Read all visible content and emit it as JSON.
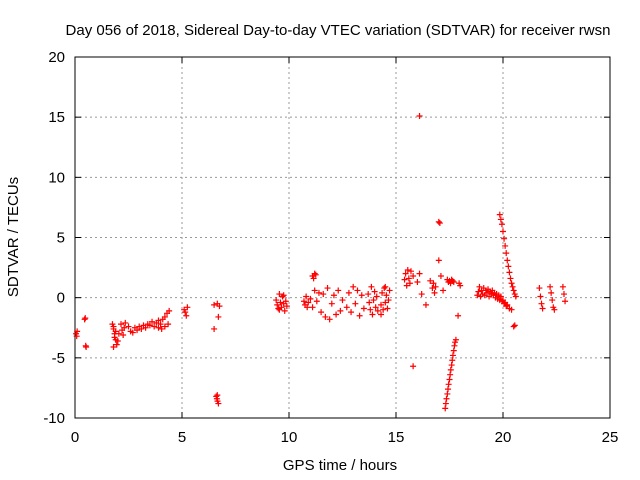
{
  "chart_data": {
    "type": "scatter",
    "title": "Day 056 of 2018, Sidereal Day-to-day VTEC variation (SDTVAR) for receiver rwsn",
    "xlabel": "GPS time / hours",
    "ylabel": "SDTVAR / TECUs",
    "xlim": [
      0,
      25
    ],
    "ylim": [
      -10,
      20
    ],
    "xticks": [
      0,
      5,
      10,
      15,
      20,
      25
    ],
    "yticks": [
      -10,
      -5,
      0,
      5,
      10,
      15,
      20
    ],
    "grid": true,
    "marker": "+",
    "color": "#ff0000",
    "series": [
      {
        "name": "SDTVAR",
        "points": [
          [
            0.05,
            -3.0
          ],
          [
            0.08,
            -3.2
          ],
          [
            0.1,
            -2.8
          ],
          [
            0.45,
            -1.8
          ],
          [
            0.48,
            -1.7
          ],
          [
            0.5,
            -4.0
          ],
          [
            0.52,
            -4.1
          ],
          [
            1.75,
            -2.2
          ],
          [
            1.8,
            -2.6
          ],
          [
            1.85,
            -3.0
          ],
          [
            1.9,
            -3.5
          ],
          [
            1.95,
            -3.9
          ],
          [
            1.8,
            -4.1
          ],
          [
            1.85,
            -3.3
          ],
          [
            1.9,
            -2.8
          ],
          [
            2.0,
            -3.6
          ],
          [
            2.05,
            -3.0
          ],
          [
            1.8,
            -2.4
          ],
          [
            2.15,
            -2.2
          ],
          [
            2.2,
            -2.7
          ],
          [
            2.25,
            -3.1
          ],
          [
            2.3,
            -2.5
          ],
          [
            2.35,
            -2.1
          ],
          [
            2.5,
            -2.4
          ],
          [
            2.6,
            -2.8
          ],
          [
            2.7,
            -2.9
          ],
          [
            2.8,
            -2.5
          ],
          [
            2.9,
            -2.7
          ],
          [
            3.0,
            -2.4
          ],
          [
            3.1,
            -2.6
          ],
          [
            3.2,
            -2.3
          ],
          [
            3.3,
            -2.5
          ],
          [
            3.4,
            -2.2
          ],
          [
            3.5,
            -2.3
          ],
          [
            3.6,
            -2.0
          ],
          [
            3.7,
            -2.4
          ],
          [
            3.8,
            -2.1
          ],
          [
            3.9,
            -1.9
          ],
          [
            4.0,
            -2.2
          ],
          [
            4.1,
            -1.8
          ],
          [
            4.2,
            -1.6
          ],
          [
            4.3,
            -1.3
          ],
          [
            4.4,
            -1.1
          ],
          [
            4.35,
            -2.2
          ],
          [
            4.2,
            -2.4
          ],
          [
            4.05,
            -2.6
          ],
          [
            3.9,
            -2.5
          ],
          [
            5.1,
            -1.0
          ],
          [
            5.15,
            -1.2
          ],
          [
            5.2,
            -1.5
          ],
          [
            5.25,
            -0.8
          ],
          [
            6.5,
            -0.6
          ],
          [
            6.5,
            -2.6
          ],
          [
            6.65,
            -0.5
          ],
          [
            6.7,
            -1.6
          ],
          [
            6.75,
            -0.7
          ],
          [
            6.6,
            -8.2
          ],
          [
            6.63,
            -8.4
          ],
          [
            6.66,
            -8.6
          ],
          [
            6.7,
            -8.8
          ],
          [
            6.65,
            -8.1
          ],
          [
            9.4,
            -0.2
          ],
          [
            9.45,
            -0.6
          ],
          [
            9.5,
            -0.9
          ],
          [
            9.55,
            0.3
          ],
          [
            9.6,
            -0.4
          ],
          [
            9.65,
            -0.8
          ],
          [
            9.7,
            0.1
          ],
          [
            9.75,
            -0.5
          ],
          [
            9.8,
            -1.1
          ],
          [
            9.85,
            -0.3
          ],
          [
            9.9,
            -0.7
          ],
          [
            9.55,
            -1.0
          ],
          [
            9.75,
            0.2
          ],
          [
            10.7,
            -0.3
          ],
          [
            10.75,
            -0.6
          ],
          [
            10.8,
            0.1
          ],
          [
            10.85,
            -0.8
          ],
          [
            10.9,
            -0.4
          ],
          [
            11.1,
            1.8
          ],
          [
            11.15,
            1.6
          ],
          [
            11.2,
            2.0
          ],
          [
            11.25,
            1.9
          ],
          [
            11.0,
            -0.1
          ],
          [
            11.1,
            -0.8
          ],
          [
            11.2,
            0.6
          ],
          [
            11.3,
            -0.3
          ],
          [
            11.4,
            0.4
          ],
          [
            11.5,
            -1.2
          ],
          [
            11.6,
            0.3
          ],
          [
            11.7,
            -1.6
          ],
          [
            11.8,
            0.8
          ],
          [
            11.9,
            -1.8
          ],
          [
            12.0,
            -0.5
          ],
          [
            12.1,
            0.2
          ],
          [
            12.2,
            -1.4
          ],
          [
            12.3,
            0.6
          ],
          [
            12.4,
            -1.1
          ],
          [
            12.5,
            -0.2
          ],
          [
            12.7,
            -0.8
          ],
          [
            12.8,
            0.4
          ],
          [
            12.9,
            -1.2
          ],
          [
            13.0,
            0.9
          ],
          [
            13.1,
            -0.5
          ],
          [
            13.2,
            0.6
          ],
          [
            13.3,
            -1.5
          ],
          [
            13.4,
            0.2
          ],
          [
            13.5,
            -0.9
          ],
          [
            13.7,
            0.3
          ],
          [
            13.75,
            -0.4
          ],
          [
            13.8,
            -1.0
          ],
          [
            13.85,
            0.9
          ],
          [
            13.9,
            -1.4
          ],
          [
            13.95,
            -0.2
          ],
          [
            14.0,
            0.5
          ],
          [
            14.05,
            -0.8
          ],
          [
            14.1,
            0.1
          ],
          [
            14.15,
            -1.1
          ],
          [
            14.3,
            -0.6
          ],
          [
            14.35,
            0.4
          ],
          [
            14.4,
            -1.0
          ],
          [
            14.45,
            0.8
          ],
          [
            14.5,
            -0.4
          ],
          [
            14.55,
            0.2
          ],
          [
            14.6,
            -0.9
          ],
          [
            14.65,
            -0.2
          ],
          [
            14.7,
            0.6
          ],
          [
            14.3,
            -1.4
          ],
          [
            14.5,
            0.9
          ],
          [
            15.4,
            1.5
          ],
          [
            15.45,
            2.0
          ],
          [
            15.5,
            1.0
          ],
          [
            15.55,
            2.3
          ],
          [
            15.6,
            1.6
          ],
          [
            15.65,
            1.2
          ],
          [
            15.7,
            2.2
          ],
          [
            15.8,
            1.8
          ],
          [
            16.1,
            15.1
          ],
          [
            16.0,
            1.3
          ],
          [
            16.1,
            2.0
          ],
          [
            16.2,
            0.3
          ],
          [
            15.8,
            -5.7
          ],
          [
            16.4,
            -0.6
          ],
          [
            16.6,
            1.4
          ],
          [
            16.7,
            0.8
          ],
          [
            16.75,
            1.2
          ],
          [
            16.8,
            0.4
          ],
          [
            16.85,
            0.9
          ],
          [
            17.0,
            6.3
          ],
          [
            17.05,
            6.2
          ],
          [
            17.0,
            3.1
          ],
          [
            17.1,
            1.8
          ],
          [
            17.2,
            0.6
          ],
          [
            17.3,
            -9.2
          ],
          [
            17.33,
            -8.8
          ],
          [
            17.36,
            -8.4
          ],
          [
            17.4,
            -8.0
          ],
          [
            17.43,
            -7.6
          ],
          [
            17.46,
            -7.2
          ],
          [
            17.5,
            -6.8
          ],
          [
            17.53,
            -6.4
          ],
          [
            17.56,
            -6.0
          ],
          [
            17.6,
            -5.6
          ],
          [
            17.63,
            -5.2
          ],
          [
            17.66,
            -4.8
          ],
          [
            17.7,
            -4.4
          ],
          [
            17.73,
            -4.0
          ],
          [
            17.76,
            -3.7
          ],
          [
            17.8,
            -3.5
          ],
          [
            17.4,
            1.5
          ],
          [
            17.45,
            1.3
          ],
          [
            17.5,
            1.4
          ],
          [
            17.55,
            1.2
          ],
          [
            17.6,
            1.5
          ],
          [
            17.65,
            1.4
          ],
          [
            17.7,
            1.3
          ],
          [
            17.9,
            -1.5
          ],
          [
            17.95,
            1.2
          ],
          [
            18.0,
            1.0
          ],
          [
            18.8,
            0.2
          ],
          [
            18.85,
            0.5
          ],
          [
            18.9,
            0.9
          ],
          [
            18.95,
            0.1
          ],
          [
            19.0,
            0.6
          ],
          [
            19.05,
            0.3
          ],
          [
            19.1,
            0.8
          ],
          [
            19.15,
            0.2
          ],
          [
            19.2,
            0.6
          ],
          [
            19.25,
            0.4
          ],
          [
            19.3,
            0.7
          ],
          [
            19.35,
            0.1
          ],
          [
            19.4,
            0.5
          ],
          [
            19.45,
            0.3
          ],
          [
            19.5,
            0.6
          ],
          [
            19.55,
            0.2
          ],
          [
            19.6,
            0.4
          ],
          [
            19.65,
            0.0
          ],
          [
            19.7,
            0.3
          ],
          [
            19.75,
            -0.1
          ],
          [
            19.8,
            0.2
          ],
          [
            19.85,
            -0.2
          ],
          [
            19.9,
            0.1
          ],
          [
            19.95,
            -0.3
          ],
          [
            20.0,
            -0.2
          ],
          [
            20.05,
            -0.5
          ],
          [
            20.1,
            -0.4
          ],
          [
            20.15,
            -0.7
          ],
          [
            20.2,
            -0.6
          ],
          [
            20.3,
            -0.9
          ],
          [
            20.4,
            -1.0
          ],
          [
            19.85,
            6.9
          ],
          [
            19.9,
            6.5
          ],
          [
            19.95,
            6.1
          ],
          [
            20.0,
            5.5
          ],
          [
            20.05,
            4.9
          ],
          [
            20.1,
            4.3
          ],
          [
            20.15,
            3.7
          ],
          [
            20.2,
            3.1
          ],
          [
            20.25,
            2.6
          ],
          [
            20.3,
            2.1
          ],
          [
            20.35,
            1.6
          ],
          [
            20.4,
            1.2
          ],
          [
            20.45,
            0.9
          ],
          [
            20.5,
            0.6
          ],
          [
            20.55,
            0.3
          ],
          [
            20.6,
            0.1
          ],
          [
            20.5,
            -2.4
          ],
          [
            20.55,
            -2.3
          ],
          [
            21.7,
            0.8
          ],
          [
            21.75,
            0.1
          ],
          [
            21.8,
            -0.5
          ],
          [
            21.85,
            -0.9
          ],
          [
            22.2,
            0.9
          ],
          [
            22.25,
            0.4
          ],
          [
            22.3,
            -0.2
          ],
          [
            22.35,
            -0.8
          ],
          [
            22.4,
            -1.0
          ],
          [
            22.8,
            0.9
          ],
          [
            22.85,
            0.3
          ],
          [
            22.9,
            -0.3
          ]
        ]
      }
    ]
  }
}
